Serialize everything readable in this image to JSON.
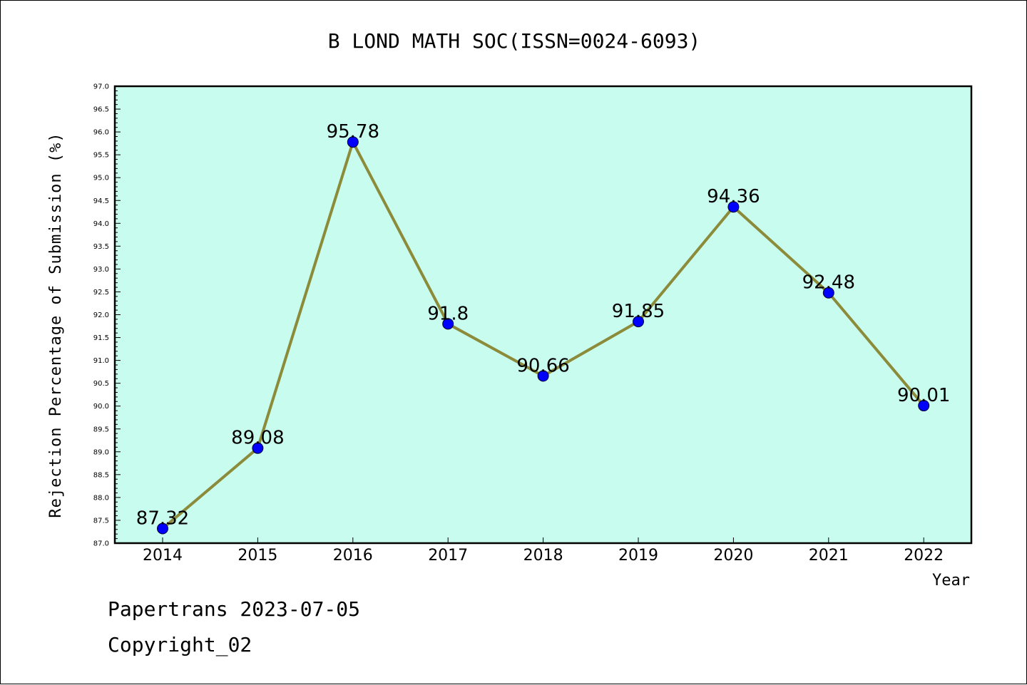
{
  "chart_data": {
    "type": "line",
    "title": "B LOND MATH SOC(ISSN=0024-6093)",
    "xlabel": "Year",
    "ylabel": "Rejection Percentage of Submission (%)",
    "categories": [
      "2014",
      "2015",
      "2016",
      "2017",
      "2018",
      "2019",
      "2020",
      "2021",
      "2022"
    ],
    "values": [
      87.32,
      89.08,
      95.78,
      91.8,
      90.66,
      91.85,
      94.36,
      92.48,
      90.01
    ],
    "data_labels": [
      "87.32",
      "89.08",
      "95.78",
      "91.8",
      "90.66",
      "91.85",
      "94.36",
      "92.48",
      "90.01"
    ],
    "ylim": [
      87.0,
      97.0
    ],
    "ytick_step": 0.5,
    "ytick_labels": [
      "87.0",
      "87.5",
      "88.0",
      "88.5",
      "89.0",
      "89.5",
      "90.0",
      "90.5",
      "91.0",
      "91.5",
      "92.0",
      "92.5",
      "93.0",
      "93.5",
      "94.0",
      "94.5",
      "95.0",
      "95.5",
      "96.0",
      "96.5",
      "97.0"
    ],
    "grid": false,
    "colors": {
      "plot_background": "#c8fcee",
      "line": "#8b8b3a",
      "marker": "#0000ff"
    }
  },
  "footer": {
    "line1": "Papertrans 2023-07-05",
    "line2": "Copyright_02"
  }
}
